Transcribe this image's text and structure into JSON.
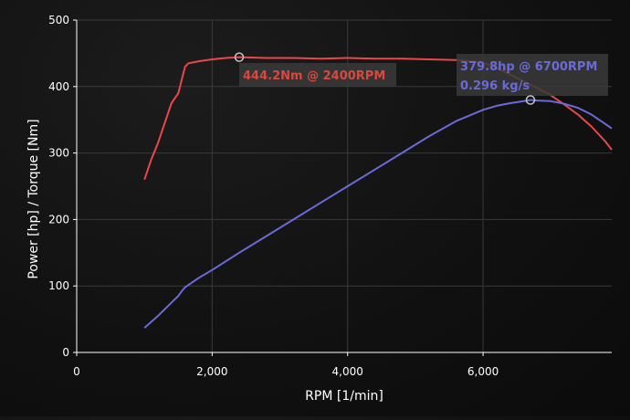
{
  "chart_data": {
    "type": "line",
    "xlabel": "RPM [1/min]",
    "ylabel": "Power [hp] / Torque [Nm]",
    "xlim": [
      0,
      7900
    ],
    "ylim": [
      0,
      500
    ],
    "x_ticks": [
      0,
      2000,
      4000,
      6000
    ],
    "x_tick_labels": [
      "0",
      "2,000",
      "4,000",
      "6,000"
    ],
    "y_ticks": [
      0,
      100,
      200,
      300,
      400,
      500
    ],
    "y_tick_labels": [
      "0",
      "100",
      "200",
      "300",
      "400",
      "500"
    ],
    "grid": true,
    "legend": "none",
    "series": [
      {
        "key": "torque",
        "color": "#e8484b",
        "x": [
          1000,
          1100,
          1200,
          1300,
          1400,
          1500,
          1550,
          1600,
          1650,
          1700,
          1800,
          2000,
          2200,
          2400,
          2800,
          3200,
          3600,
          4000,
          4400,
          4800,
          5200,
          5600,
          6000,
          6200,
          6400,
          6600,
          6800,
          7000,
          7200,
          7400,
          7600,
          7800,
          7900
        ],
        "y": [
          260,
          290,
          315,
          345,
          375,
          390,
          410,
          430,
          435,
          436,
          438,
          441,
          443,
          444.2,
          443,
          443,
          442,
          443,
          442,
          442,
          441,
          440,
          436,
          428,
          418,
          408,
          398,
          387,
          373,
          358,
          340,
          318,
          305
        ]
      },
      {
        "key": "power",
        "color": "#6a6ad8",
        "x": [
          1000,
          1200,
          1400,
          1500,
          1550,
          1600,
          1700,
          1800,
          2000,
          2400,
          2800,
          3200,
          3600,
          4000,
          4400,
          4800,
          5200,
          5600,
          6000,
          6200,
          6400,
          6600,
          6700,
          6800,
          7000,
          7200,
          7400,
          7600,
          7800,
          7900
        ],
        "y": [
          37,
          55,
          75,
          85,
          92,
          98,
          105,
          112,
          124,
          150,
          175,
          200,
          225,
          250,
          275,
          300,
          325,
          348,
          365,
          371,
          375,
          378,
          379.8,
          379,
          378,
          374,
          368,
          358,
          344,
          337
        ]
      }
    ],
    "annotations": [
      {
        "key": "torque_peak",
        "text": "444.2Nm @ 2400RPM",
        "x": 2400,
        "y": 444.2,
        "color": "#d9483e"
      },
      {
        "key": "power_peak",
        "text": "379.8hp @ 6700RPM",
        "text2": "0.296 kg/s",
        "x": 6700,
        "y": 379.8,
        "color": "#6a6ad8"
      }
    ]
  }
}
